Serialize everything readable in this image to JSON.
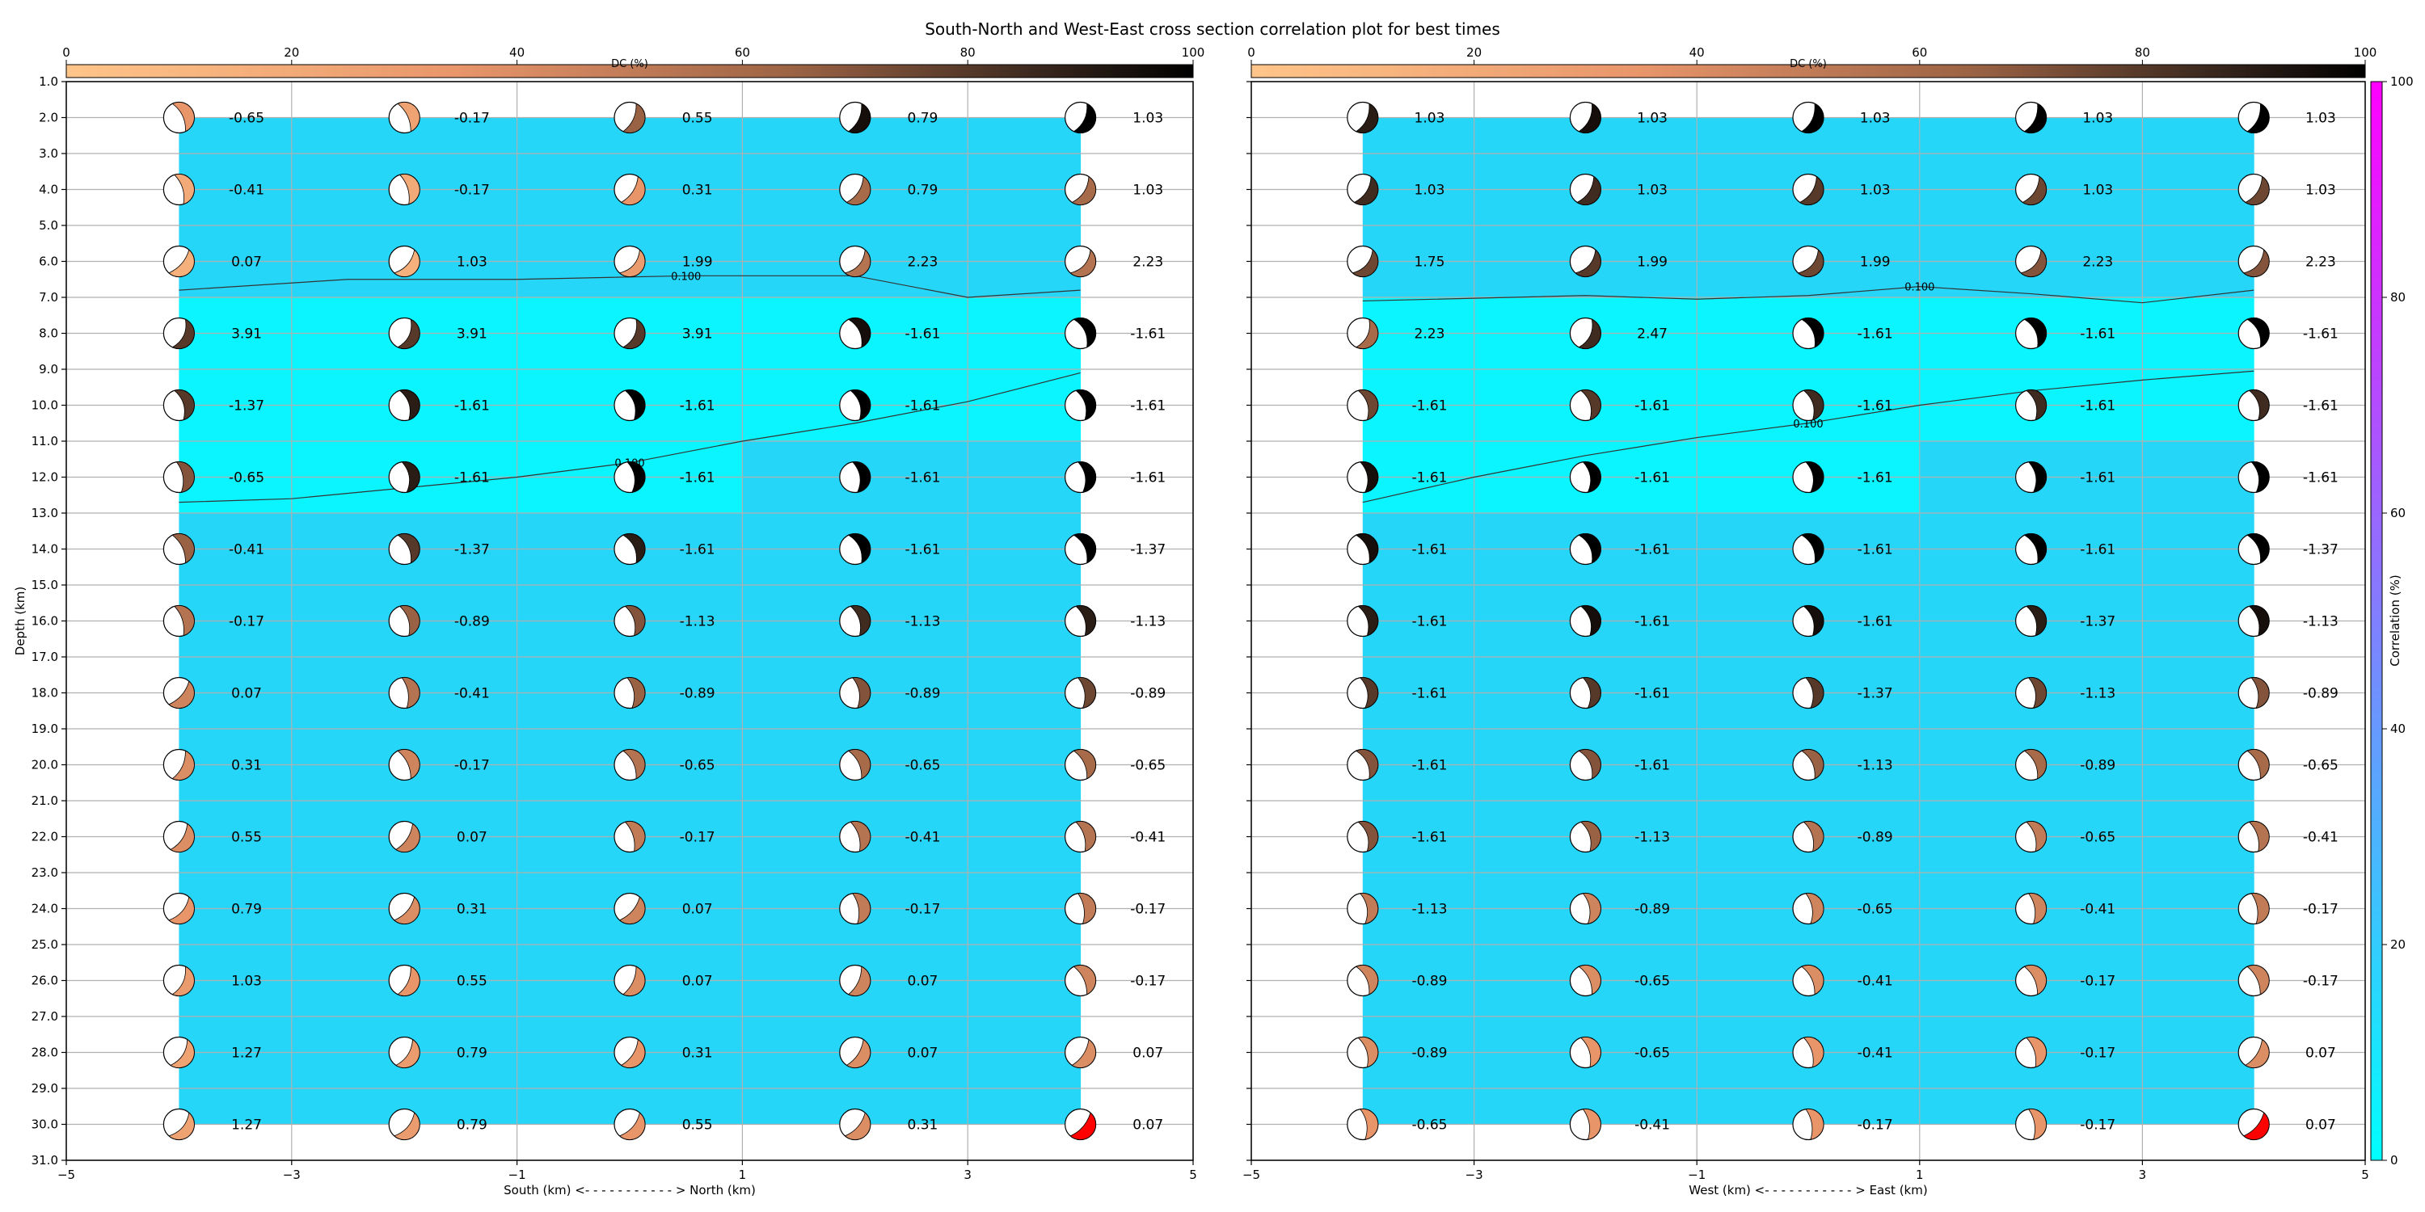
{
  "chart_data": {
    "type": "heatmap",
    "title": "South-North and West-East cross section correlation plot for best times",
    "dc_colorbar": {
      "label": "DC (%)",
      "range": [
        0,
        100
      ],
      "ticks": [
        "0",
        "20",
        "40",
        "60",
        "80",
        "100"
      ]
    },
    "correlation_colorbar": {
      "label": "Correlation (%)",
      "range": [
        0,
        100
      ],
      "ticks": [
        "0",
        "20",
        "40",
        "60",
        "80",
        "100"
      ]
    },
    "y_axis": {
      "label": "Depth (km)",
      "range": [
        1,
        31
      ],
      "inverted": true,
      "ticks": [
        "1.0",
        "2.0",
        "3.0",
        "4.0",
        "5.0",
        "6.0",
        "7.0",
        "8.0",
        "9.0",
        "10.0",
        "11.0",
        "12.0",
        "13.0",
        "14.0",
        "15.0",
        "16.0",
        "17.0",
        "18.0",
        "19.0",
        "20.0",
        "21.0",
        "22.0",
        "23.0",
        "24.0",
        "25.0",
        "26.0",
        "27.0",
        "28.0",
        "29.0",
        "30.0",
        "31.0"
      ]
    },
    "x_ticks": [
      "−5",
      "−3",
      "−1",
      "1",
      "3",
      "5"
    ],
    "x_range": [
      -5,
      5
    ],
    "grid": true,
    "depths": [
      2,
      4,
      6,
      8,
      10,
      12,
      14,
      16,
      18,
      20,
      22,
      24,
      26,
      28,
      30
    ],
    "positions": [
      -4,
      -2,
      0,
      2,
      4
    ],
    "contour_label": "0.100",
    "panels": [
      {
        "xlabel": "South (km) <- - - - - - - - - - - > North (km)",
        "values": [
          [
            "-0.65",
            "-0.17",
            "0.55",
            "0.79",
            "1.03"
          ],
          [
            "-0.41",
            "-0.17",
            "0.31",
            "0.79",
            "1.03"
          ],
          [
            "0.07",
            "1.03",
            "1.99",
            "2.23",
            "2.23"
          ],
          [
            "3.91",
            "3.91",
            "3.91",
            "-1.61",
            "-1.61"
          ],
          [
            "-1.37",
            "-1.61",
            "-1.61",
            "-1.61",
            "-1.61"
          ],
          [
            "-0.65",
            "-1.61",
            "-1.61",
            "-1.61",
            "-1.61"
          ],
          [
            "-0.41",
            "-1.37",
            "-1.61",
            "-1.61",
            "-1.37"
          ],
          [
            "-0.17",
            "-0.89",
            "-1.13",
            "-1.13",
            "-1.13"
          ],
          [
            "0.07",
            "-0.41",
            "-0.89",
            "-0.89",
            "-0.89"
          ],
          [
            "0.31",
            "-0.17",
            "-0.65",
            "-0.65",
            "-0.65"
          ],
          [
            "0.55",
            "0.07",
            "-0.17",
            "-0.41",
            "-0.41"
          ],
          [
            "0.79",
            "0.31",
            "0.07",
            "-0.17",
            "-0.17"
          ],
          [
            "1.03",
            "0.55",
            "0.07",
            "0.07",
            "-0.17"
          ],
          [
            "1.27",
            "0.79",
            "0.31",
            "0.07",
            "0.07"
          ],
          [
            "1.27",
            "0.79",
            "0.55",
            "0.31",
            "0.07"
          ]
        ],
        "contours": [
          {
            "x": [
              -4,
              -2.5,
              -1,
              0.5,
              2,
              3,
              4
            ],
            "depth": [
              6.8,
              6.5,
              6.5,
              6.4,
              6.4,
              7.0,
              6.8
            ]
          },
          {
            "x": [
              -4,
              -3,
              -2,
              -1,
              0,
              1,
              2,
              3,
              4
            ],
            "depth": [
              12.7,
              12.6,
              12.3,
              12.0,
              11.6,
              11.0,
              10.5,
              9.9,
              9.1
            ]
          }
        ],
        "dc": [
          [
            35,
            25,
            65,
            95,
            100
          ],
          [
            20,
            20,
            35,
            60,
            60
          ],
          [
            15,
            15,
            30,
            55,
            55
          ],
          [
            80,
            80,
            80,
            95,
            100
          ],
          [
            80,
            90,
            100,
            100,
            100
          ],
          [
            70,
            90,
            100,
            100,
            100
          ],
          [
            65,
            80,
            90,
            100,
            100
          ],
          [
            55,
            65,
            70,
            85,
            90
          ],
          [
            45,
            55,
            65,
            70,
            75
          ],
          [
            40,
            45,
            55,
            60,
            60
          ],
          [
            40,
            45,
            50,
            55,
            55
          ],
          [
            35,
            40,
            45,
            50,
            50
          ],
          [
            30,
            35,
            40,
            45,
            45
          ],
          [
            25,
            30,
            35,
            40,
            40
          ],
          [
            25,
            30,
            35,
            40,
            0
          ]
        ],
        "correlation": [
          [
            20,
            20,
            20,
            20,
            20
          ],
          [
            20,
            20,
            20,
            20,
            20
          ],
          [
            20,
            20,
            20,
            20,
            20
          ],
          [
            15,
            15,
            15,
            15,
            15
          ],
          [
            15,
            15,
            15,
            15,
            15
          ],
          [
            15,
            15,
            15,
            20,
            20
          ],
          [
            20,
            20,
            20,
            20,
            20
          ],
          [
            20,
            20,
            20,
            20,
            20
          ],
          [
            20,
            20,
            20,
            20,
            20
          ],
          [
            20,
            20,
            20,
            20,
            20
          ],
          [
            20,
            20,
            20,
            20,
            20
          ],
          [
            20,
            20,
            20,
            20,
            20
          ],
          [
            20,
            20,
            20,
            20,
            20
          ],
          [
            20,
            20,
            20,
            20,
            20
          ],
          [
            20,
            20,
            20,
            20,
            20
          ]
        ]
      },
      {
        "xlabel": "West (km) <- - - - - - - - - - - > East (km)",
        "values": [
          [
            "1.03",
            "1.03",
            "1.03",
            "1.03",
            "1.03"
          ],
          [
            "1.03",
            "1.03",
            "1.03",
            "1.03",
            "1.03"
          ],
          [
            "1.75",
            "1.99",
            "1.99",
            "2.23",
            "2.23"
          ],
          [
            "2.23",
            "2.47",
            "-1.61",
            "-1.61",
            "-1.61"
          ],
          [
            "-1.61",
            "-1.61",
            "-1.61",
            "-1.61",
            "-1.61"
          ],
          [
            "-1.61",
            "-1.61",
            "-1.61",
            "-1.61",
            "-1.61"
          ],
          [
            "-1.61",
            "-1.61",
            "-1.61",
            "-1.61",
            "-1.37"
          ],
          [
            "-1.61",
            "-1.61",
            "-1.61",
            "-1.37",
            "-1.13"
          ],
          [
            "-1.61",
            "-1.61",
            "-1.37",
            "-1.13",
            "-0.89"
          ],
          [
            "-1.61",
            "-1.61",
            "-1.13",
            "-0.89",
            "-0.65"
          ],
          [
            "-1.61",
            "-1.13",
            "-0.89",
            "-0.65",
            "-0.41"
          ],
          [
            "-1.13",
            "-0.89",
            "-0.65",
            "-0.41",
            "-0.17"
          ],
          [
            "-0.89",
            "-0.65",
            "-0.41",
            "-0.17",
            "-0.17"
          ],
          [
            "-0.89",
            "-0.65",
            "-0.41",
            "-0.17",
            "0.07"
          ],
          [
            "-0.65",
            "-0.41",
            "-0.17",
            "-0.17",
            "0.07"
          ]
        ],
        "contours": [
          {
            "x": [
              -4,
              -2,
              -1,
              0,
              1,
              2,
              3,
              4
            ],
            "depth": [
              7.1,
              6.95,
              7.05,
              6.95,
              6.7,
              6.9,
              7.15,
              6.8
            ]
          },
          {
            "x": [
              -4,
              -3,
              -2,
              -1,
              0,
              1,
              2,
              3,
              4
            ],
            "depth": [
              12.7,
              12.0,
              11.4,
              10.9,
              10.5,
              10.0,
              9.6,
              9.3,
              9.05
            ]
          }
        ],
        "dc": [
          [
            90,
            95,
            100,
            100,
            100
          ],
          [
            85,
            85,
            80,
            75,
            75
          ],
          [
            75,
            80,
            75,
            70,
            70
          ],
          [
            60,
            85,
            100,
            100,
            100
          ],
          [
            75,
            80,
            85,
            85,
            85
          ],
          [
            95,
            100,
            100,
            100,
            100
          ],
          [
            95,
            100,
            100,
            100,
            100
          ],
          [
            90,
            95,
            95,
            90,
            95
          ],
          [
            80,
            80,
            80,
            75,
            70
          ],
          [
            70,
            70,
            65,
            60,
            60
          ],
          [
            70,
            65,
            55,
            50,
            55
          ],
          [
            50,
            45,
            45,
            45,
            50
          ],
          [
            45,
            40,
            40,
            40,
            45
          ],
          [
            40,
            35,
            35,
            35,
            40
          ],
          [
            35,
            35,
            35,
            35,
            0
          ]
        ],
        "correlation": [
          [
            20,
            20,
            20,
            20,
            20
          ],
          [
            20,
            20,
            20,
            20,
            20
          ],
          [
            20,
            20,
            20,
            20,
            20
          ],
          [
            15,
            15,
            15,
            15,
            15
          ],
          [
            15,
            15,
            15,
            15,
            15
          ],
          [
            15,
            15,
            15,
            20,
            20
          ],
          [
            20,
            20,
            20,
            20,
            20
          ],
          [
            20,
            20,
            20,
            20,
            20
          ],
          [
            20,
            20,
            20,
            20,
            20
          ],
          [
            20,
            20,
            20,
            20,
            20
          ],
          [
            20,
            20,
            20,
            20,
            20
          ],
          [
            20,
            20,
            20,
            20,
            20
          ],
          [
            20,
            20,
            20,
            20,
            20
          ],
          [
            20,
            20,
            20,
            20,
            20
          ],
          [
            20,
            20,
            20,
            20,
            20
          ]
        ]
      }
    ]
  }
}
